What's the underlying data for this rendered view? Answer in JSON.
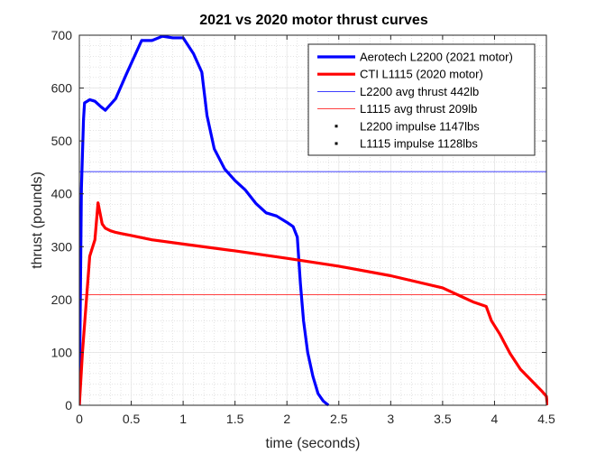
{
  "chart_data": {
    "type": "line",
    "title": "2021 vs 2020 motor thrust curves",
    "xlabel": "time (seconds)",
    "ylabel": "thrust (pounds)",
    "xlim": [
      0,
      4.5
    ],
    "ylim": [
      0,
      700
    ],
    "xticks": [
      0,
      0.5,
      1,
      1.5,
      2,
      2.5,
      3,
      3.5,
      4,
      4.5
    ],
    "xtick_labels": [
      "0",
      "0.5",
      "1",
      "1.5",
      "2",
      "2.5",
      "3",
      "3.5",
      "4",
      "4.5"
    ],
    "yticks": [
      0,
      100,
      200,
      300,
      400,
      500,
      600,
      700
    ],
    "ytick_labels": [
      "0",
      "100",
      "200",
      "300",
      "400",
      "500",
      "600",
      "700"
    ],
    "grid": true,
    "minor_grid": true,
    "legend_position": "top-right",
    "series": [
      {
        "name": "Aerotech L2200 (2021 motor)",
        "color": "#0000ff",
        "width": "thick",
        "x": [
          0,
          0.02,
          0.04,
          0.05,
          0.1,
          0.15,
          0.2,
          0.25,
          0.35,
          0.45,
          0.6,
          0.7,
          0.8,
          0.9,
          1.0,
          1.1,
          1.18,
          1.23,
          1.3,
          1.4,
          1.5,
          1.6,
          1.7,
          1.8,
          1.9,
          2.0,
          2.06,
          2.1,
          2.13,
          2.16,
          2.2,
          2.25,
          2.3,
          2.35,
          2.4
        ],
        "y": [
          0,
          410,
          540,
          572,
          578,
          575,
          566,
          558,
          580,
          625,
          690,
          690,
          698,
          695,
          695,
          665,
          630,
          548,
          485,
          447,
          425,
          407,
          382,
          364,
          358,
          346,
          338,
          318,
          230,
          160,
          100,
          55,
          22,
          8,
          0
        ]
      },
      {
        "name": "CTI L1115 (2020 motor)",
        "color": "#ff0000",
        "width": "thick",
        "x": [
          0,
          0.03,
          0.1,
          0.15,
          0.18,
          0.22,
          0.25,
          0.3,
          0.35,
          0.4,
          0.5,
          0.7,
          1.0,
          1.5,
          2.0,
          2.5,
          3.0,
          3.5,
          3.8,
          3.92,
          3.97,
          4.05,
          4.15,
          4.25,
          4.35,
          4.45,
          4.5,
          4.51
        ],
        "y": [
          0,
          100,
          282,
          313,
          383,
          343,
          335,
          330,
          327,
          325,
          321,
          313,
          305,
          292,
          278,
          263,
          245,
          222,
          195,
          187,
          160,
          135,
          98,
          68,
          48,
          28,
          17,
          0
        ]
      },
      {
        "name": "L2200 avg thrust 442lb",
        "color": "#0000ff",
        "width": "thin",
        "x": [
          0,
          4.5
        ],
        "y": [
          442,
          442
        ]
      },
      {
        "name": "L1115 avg thrust 209lb",
        "color": "#ff0000",
        "width": "thin",
        "x": [
          0,
          4.5
        ],
        "y": [
          209,
          209
        ]
      },
      {
        "name": "L2200 impulse 1147lbs",
        "color": "#000000",
        "width": "point"
      },
      {
        "name": "L1115 impulse 1128lbs",
        "color": "#000000",
        "width": "point"
      }
    ]
  }
}
